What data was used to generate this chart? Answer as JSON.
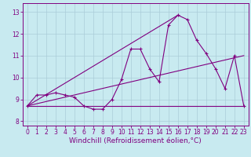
{
  "bg_color": "#c8eaf0",
  "grid_color": "#aaccd8",
  "line_color": "#800080",
  "xlabel": "Windchill (Refroidissement éolien,°C)",
  "xlabel_fontsize": 6.5,
  "tick_fontsize": 5.5,
  "yticks": [
    8,
    9,
    10,
    11,
    12,
    13
  ],
  "xticks": [
    0,
    1,
    2,
    3,
    4,
    5,
    6,
    7,
    8,
    9,
    10,
    11,
    12,
    13,
    14,
    15,
    16,
    17,
    18,
    19,
    20,
    21,
    22,
    23
  ],
  "xlim": [
    -0.5,
    23.5
  ],
  "ylim": [
    7.8,
    13.4
  ],
  "series1_x": [
    0,
    1,
    2,
    3,
    4,
    5,
    6,
    7,
    8,
    9,
    10,
    11,
    12,
    13,
    14,
    15,
    16,
    17,
    18,
    19,
    20,
    21,
    22,
    23
  ],
  "series1_y": [
    8.7,
    9.2,
    9.2,
    9.3,
    9.2,
    9.1,
    8.7,
    8.55,
    8.55,
    9.0,
    9.9,
    11.3,
    11.3,
    10.4,
    9.8,
    12.4,
    12.85,
    12.65,
    11.7,
    11.1,
    10.4,
    9.5,
    11.0,
    8.7
  ],
  "series2_x": [
    0,
    23
  ],
  "series2_y": [
    8.7,
    8.7
  ],
  "series3_x": [
    0,
    16
  ],
  "series3_y": [
    8.7,
    12.85
  ],
  "series4_x": [
    0,
    23
  ],
  "series4_y": [
    8.7,
    11.0
  ]
}
